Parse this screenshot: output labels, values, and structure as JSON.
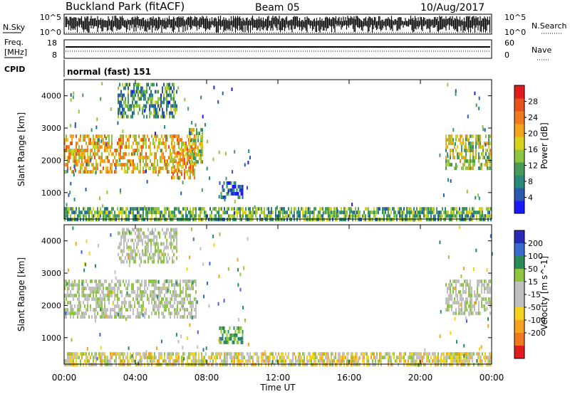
{
  "header": {
    "station": "Buckland Park (fitACF)",
    "beam": "Beam 05",
    "date": "10/Aug/2017"
  },
  "status_panels": {
    "noise": {
      "left_label": "N.Sky",
      "right_label": "N.Search",
      "left_ticks": [
        "10^5",
        "10^0"
      ],
      "right_ticks": [
        "10^5",
        "10^0"
      ]
    },
    "freq": {
      "left_label_1": "Freq.",
      "left_label_2": "[MHz]",
      "left_ticks": [
        "18",
        "8"
      ],
      "right_label": "Nave",
      "right_ticks": [
        "60",
        "0"
      ]
    },
    "cpid": {
      "label": "CPID",
      "value": "normal (fast) 151"
    }
  },
  "colors": {
    "power_scale": [
      "#1a1aff",
      "#2a5ab0",
      "#2a8a7a",
      "#4a9a5a",
      "#8ec63f",
      "#d9d21c",
      "#f5a31c",
      "#f07a1c",
      "#e8501c",
      "#e01c1c"
    ],
    "velocity_scale": [
      "#2a2ab8",
      "#3a6ad0",
      "#2a8a5a",
      "#8ec63f",
      "#c0c0c0",
      "#c0c0c0",
      "#f5d21c",
      "#f5a31c",
      "#f07a1c",
      "#e01c1c"
    ]
  },
  "chart_data": [
    {
      "type": "heatmap",
      "title": "Power",
      "ylabel": "Slant Range [km]",
      "xlabel": "",
      "ylim": [
        180,
        4500
      ],
      "xlim": [
        0,
        24
      ],
      "yticks": [
        1000,
        2000,
        3000,
        4000
      ],
      "ytick_labels": [
        "1000",
        "2000",
        "3000",
        "4000"
      ],
      "colorbar": {
        "label": "Power [dB]",
        "range": [
          0,
          32
        ],
        "ticks": [
          4,
          8,
          12,
          16,
          20,
          24,
          28
        ],
        "tick_labels": [
          "4",
          "8",
          "12",
          "16",
          "20",
          "24",
          "28"
        ]
      },
      "regions": [
        {
          "t0": 0.0,
          "t1": 7.4,
          "r0": 1600,
          "r1": 2800,
          "value": 20
        },
        {
          "t0": 6.0,
          "t1": 7.3,
          "r0": 1450,
          "r1": 2400,
          "value": 22
        },
        {
          "t0": 7.0,
          "t1": 7.8,
          "r0": 2000,
          "r1": 3000,
          "value": 14
        },
        {
          "t0": 3.0,
          "t1": 6.3,
          "r0": 3300,
          "r1": 4400,
          "value": 10
        },
        {
          "t0": 8.7,
          "t1": 10.0,
          "r0": 850,
          "r1": 1350,
          "value": 6
        },
        {
          "t0": 21.4,
          "t1": 23.9,
          "r0": 1700,
          "r1": 2800,
          "value": 16
        },
        {
          "t0": 0.0,
          "t1": 24.0,
          "r0": 180,
          "r1": 550,
          "value": 12
        }
      ]
    },
    {
      "type": "heatmap",
      "title": "Velocity",
      "ylabel": "Slant Range [km]",
      "xlabel": "Time UT",
      "ylim": [
        180,
        4500
      ],
      "xlim": [
        0,
        24
      ],
      "yticks": [
        1000,
        2000,
        3000,
        4000
      ],
      "ytick_labels": [
        "1000",
        "2000",
        "3000",
        "4000"
      ],
      "xticks": [
        0,
        4,
        8,
        12,
        16,
        20,
        24
      ],
      "xtick_labels": [
        "00:00",
        "04:00",
        "08:00",
        "12:00",
        "16:00",
        "20:00",
        "00:00"
      ],
      "colorbar": {
        "label": "Velocity [m s^-1]",
        "ticks": [
          200,
          100,
          50,
          15,
          -15,
          -50,
          -100,
          -200
        ],
        "tick_labels": [
          "200",
          "100",
          "50",
          "15",
          "-15",
          "-50",
          "-100",
          "-200"
        ]
      },
      "regions": [
        {
          "t0": 0.0,
          "t1": 7.4,
          "r0": 1600,
          "r1": 2800,
          "value": 0
        },
        {
          "t0": 3.0,
          "t1": 6.3,
          "r0": 3300,
          "r1": 4400,
          "value": 0
        },
        {
          "t0": 8.7,
          "t1": 10.0,
          "r0": 850,
          "r1": 1350,
          "value": 60
        },
        {
          "t0": 21.4,
          "t1": 23.9,
          "r0": 1700,
          "r1": 2800,
          "value": 0
        },
        {
          "t0": 0.0,
          "t1": 24.0,
          "r0": 180,
          "r1": 550,
          "value": -40
        }
      ]
    }
  ]
}
